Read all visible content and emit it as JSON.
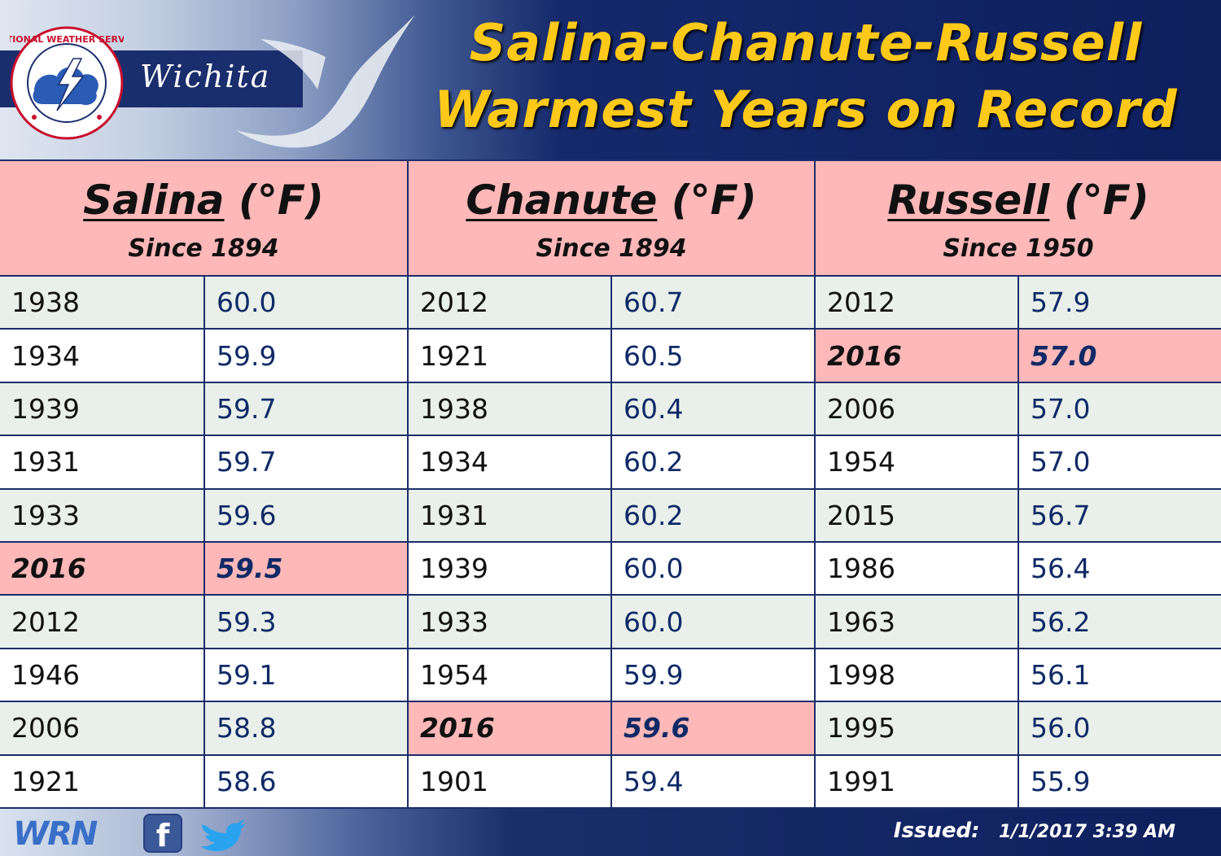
{
  "header": {
    "brand_text": "Wichita",
    "logo_label": "NATIONAL WEATHER SERVICE",
    "title_line1": "Salina-Chanute-Russell",
    "title_line2": "Warmest Years on Record"
  },
  "stations": [
    {
      "city": "Salina",
      "unit": "(°F)",
      "since": "Since 1894",
      "rows": [
        {
          "year": "1938",
          "temp": "60.0",
          "highlight": false
        },
        {
          "year": "1934",
          "temp": "59.9",
          "highlight": false
        },
        {
          "year": "1939",
          "temp": "59.7",
          "highlight": false
        },
        {
          "year": "1931",
          "temp": "59.7",
          "highlight": false
        },
        {
          "year": "1933",
          "temp": "59.6",
          "highlight": false
        },
        {
          "year": "2016",
          "temp": "59.5",
          "highlight": true
        },
        {
          "year": "2012",
          "temp": "59.3",
          "highlight": false
        },
        {
          "year": "1946",
          "temp": "59.1",
          "highlight": false
        },
        {
          "year": "2006",
          "temp": "58.8",
          "highlight": false
        },
        {
          "year": "1921",
          "temp": "58.6",
          "highlight": false
        }
      ]
    },
    {
      "city": "Chanute",
      "unit": "(°F)",
      "since": "Since 1894",
      "rows": [
        {
          "year": "2012",
          "temp": "60.7",
          "highlight": false
        },
        {
          "year": "1921",
          "temp": "60.5",
          "highlight": false
        },
        {
          "year": "1938",
          "temp": "60.4",
          "highlight": false
        },
        {
          "year": "1934",
          "temp": "60.2",
          "highlight": false
        },
        {
          "year": "1931",
          "temp": "60.2",
          "highlight": false
        },
        {
          "year": "1939",
          "temp": "60.0",
          "highlight": false
        },
        {
          "year": "1933",
          "temp": "60.0",
          "highlight": false
        },
        {
          "year": "1954",
          "temp": "59.9",
          "highlight": false
        },
        {
          "year": "2016",
          "temp": "59.6",
          "highlight": true
        },
        {
          "year": "1901",
          "temp": "59.4",
          "highlight": false
        }
      ]
    },
    {
      "city": "Russell",
      "unit": "(°F)",
      "since": "Since 1950",
      "rows": [
        {
          "year": "2012",
          "temp": "57.9",
          "highlight": false
        },
        {
          "year": "2016",
          "temp": "57.0",
          "highlight": true
        },
        {
          "year": "2006",
          "temp": "57.0",
          "highlight": false
        },
        {
          "year": "1954",
          "temp": "57.0",
          "highlight": false
        },
        {
          "year": "2015",
          "temp": "56.7",
          "highlight": false
        },
        {
          "year": "1986",
          "temp": "56.4",
          "highlight": false
        },
        {
          "year": "1963",
          "temp": "56.2",
          "highlight": false
        },
        {
          "year": "1998",
          "temp": "56.1",
          "highlight": false
        },
        {
          "year": "1995",
          "temp": "56.0",
          "highlight": false
        },
        {
          "year": "1991",
          "temp": "55.9",
          "highlight": false
        }
      ]
    }
  ],
  "footer": {
    "wrn_label": "WRN",
    "facebook_label": "f",
    "issued_label": "Issued:",
    "issued_value": "1/1/2017 3:39 AM"
  },
  "icons": [
    "nws-logo-icon",
    "bird-swoosh-icon",
    "facebook-icon",
    "twitter-icon"
  ],
  "colors": {
    "title": "#ffc91a",
    "header_navy": "#0e1f5e",
    "highlight": "#ffb8b8",
    "row_alt": "#e9f0eb",
    "grid_lines": "#1c2d6a"
  }
}
